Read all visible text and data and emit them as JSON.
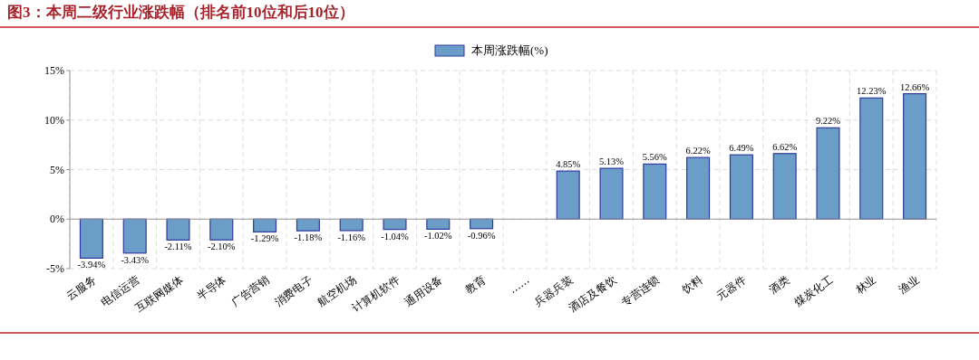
{
  "chart_data": {
    "type": "bar",
    "title": "图3：本周二级行业涨跌幅（排名前10位和后10位）",
    "categories": [
      "云服务",
      "电信运营",
      "互联网媒体",
      "半导体",
      "广告营销",
      "消费电子",
      "航空机场",
      "计算机软件",
      "通用设备",
      "教育",
      "……",
      "兵器兵装",
      "酒店及餐饮",
      "专营连锁",
      "饮料",
      "元器件",
      "酒类",
      "煤炭化工",
      "林业",
      "渔业"
    ],
    "series": [
      {
        "name": "本周涨跌幅(%)",
        "color": "#6a9dc8",
        "values": [
          -3.94,
          -3.43,
          -2.11,
          -2.1,
          -1.29,
          -1.18,
          -1.16,
          -1.04,
          -1.02,
          -0.96,
          null,
          4.85,
          5.13,
          5.56,
          6.22,
          6.49,
          6.62,
          9.22,
          12.23,
          12.66
        ],
        "value_labels": [
          "-3.94%",
          "-3.43%",
          "-2.11%",
          "-2.10%",
          "-1.29%",
          "-1.18%",
          "-1.16%",
          "-1.04%",
          "-1.02%",
          "-0.96%",
          null,
          "4.85%",
          "5.13%",
          "5.56%",
          "6.22%",
          "6.49%",
          "6.62%",
          "9.22%",
          "12.23%",
          "12.66%"
        ]
      }
    ],
    "ylim": [
      -5,
      15
    ],
    "yticks": [
      {
        "value": -5,
        "label": "-5%"
      },
      {
        "value": 0,
        "label": "0%"
      },
      {
        "value": 5,
        "label": "5%"
      },
      {
        "value": 10,
        "label": "10%"
      },
      {
        "value": 15,
        "label": "15%"
      }
    ],
    "grid": true,
    "legend": "top"
  }
}
